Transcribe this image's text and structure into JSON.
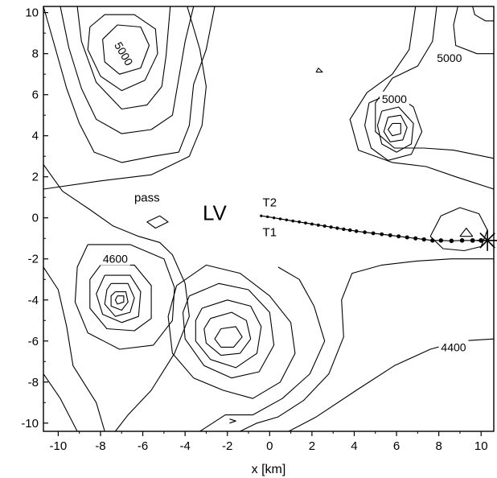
{
  "chart_data": {
    "type": "contour",
    "title": "",
    "xlabel": "x [km]",
    "ylabel": "",
    "xlim": [
      -10.7,
      10.6
    ],
    "ylim": [
      -10.4,
      10.3
    ],
    "x_ticks": [
      "-10",
      "-8",
      "-6",
      "-4",
      "-2",
      "0",
      "2",
      "4",
      "6",
      "8",
      "10"
    ],
    "y_ticks": [
      "10",
      "8",
      "6",
      "4",
      "2",
      "0",
      "-2",
      "-4",
      "-6",
      "-8",
      "-10"
    ],
    "grid": false,
    "contour_labels": [
      {
        "text": "5000",
        "x": -6.9,
        "y": 8.0,
        "rotation": 60
      },
      {
        "text": "5000",
        "x": 8.5,
        "y": 7.8,
        "rotation": 0
      },
      {
        "text": "5000",
        "x": 5.9,
        "y": 5.8,
        "rotation": 0
      },
      {
        "text": "4600",
        "x": -7.3,
        "y": -2.0,
        "rotation": 0
      },
      {
        "text": "4400",
        "x": 8.7,
        "y": -6.3,
        "rotation": 0
      }
    ],
    "annotations": [
      {
        "text": "pass",
        "x": -5.8,
        "y": 0.8,
        "size": "small"
      },
      {
        "text": "LV",
        "x": -2.6,
        "y": -0.1,
        "size": "big"
      },
      {
        "text": "T2",
        "x": 0.0,
        "y": 0.55,
        "size": "small"
      },
      {
        "text": "T1",
        "x": 0.0,
        "y": -0.9,
        "size": "small"
      }
    ],
    "marker": {
      "type": "star",
      "x": 10.3,
      "y": -1.1
    },
    "trajectory": [
      [
        -0.4,
        0.1
      ],
      [
        -0.1,
        0.05
      ],
      [
        0.2,
        0.0
      ],
      [
        0.5,
        -0.05
      ],
      [
        0.8,
        -0.1
      ],
      [
        1.1,
        -0.15
      ],
      [
        1.4,
        -0.2
      ],
      [
        1.7,
        -0.25
      ],
      [
        2.0,
        -0.3
      ],
      [
        2.3,
        -0.35
      ],
      [
        2.6,
        -0.4
      ],
      [
        2.9,
        -0.45
      ],
      [
        3.2,
        -0.5
      ],
      [
        3.5,
        -0.55
      ],
      [
        3.8,
        -0.6
      ],
      [
        4.1,
        -0.65
      ],
      [
        4.5,
        -0.7
      ],
      [
        4.9,
        -0.75
      ],
      [
        5.3,
        -0.8
      ],
      [
        5.7,
        -0.85
      ],
      [
        6.1,
        -0.9
      ],
      [
        6.5,
        -0.95
      ],
      [
        6.9,
        -1.0
      ],
      [
        7.3,
        -1.05
      ],
      [
        7.7,
        -1.1
      ],
      [
        8.1,
        -1.1
      ],
      [
        8.6,
        -1.12
      ],
      [
        9.1,
        -1.1
      ],
      [
        9.6,
        -1.1
      ],
      [
        10.0,
        -1.1
      ]
    ],
    "contours": [
      [
        [
          -10.7,
          10.3
        ],
        [
          -10.2,
          8.5
        ],
        [
          -9.6,
          6.3
        ],
        [
          -9.0,
          4.6
        ],
        [
          -8.3,
          3.2
        ],
        [
          -7.0,
          2.7
        ],
        [
          -5.5,
          3.0
        ],
        [
          -4.3,
          3.2
        ],
        [
          -3.8,
          4.5
        ],
        [
          -3.6,
          6.5
        ],
        [
          -3.0,
          8.2
        ],
        [
          -2.6,
          10.3
        ]
      ],
      [
        [
          -9.9,
          10.3
        ],
        [
          -9.5,
          8.3
        ],
        [
          -8.9,
          6.3
        ],
        [
          -8.2,
          4.8
        ],
        [
          -7.0,
          4.1
        ],
        [
          -5.6,
          4.3
        ],
        [
          -4.6,
          5.0
        ],
        [
          -4.3,
          6.8
        ],
        [
          -4.0,
          8.6
        ],
        [
          -3.6,
          10.3
        ]
      ],
      [
        [
          -9.1,
          10.3
        ],
        [
          -8.9,
          8.6
        ],
        [
          -8.2,
          6.6
        ],
        [
          -7.0,
          5.3
        ],
        [
          -5.8,
          5.5
        ],
        [
          -5.1,
          6.4
        ],
        [
          -4.9,
          7.9
        ],
        [
          -4.7,
          10.3
        ]
      ],
      [
        [
          -8.5,
          9.3
        ],
        [
          -7.8,
          9.9
        ],
        [
          -6.4,
          9.9
        ],
        [
          -5.4,
          9.2
        ],
        [
          -5.3,
          8.0
        ],
        [
          -5.9,
          6.7
        ],
        [
          -7.0,
          6.2
        ],
        [
          -8.0,
          6.9
        ],
        [
          -8.6,
          8.2
        ],
        [
          -8.5,
          9.3
        ]
      ],
      [
        [
          -7.9,
          8.7
        ],
        [
          -7.2,
          9.4
        ],
        [
          -6.1,
          9.3
        ],
        [
          -5.7,
          8.4
        ],
        [
          -6.1,
          7.3
        ],
        [
          -7.1,
          7.0
        ],
        [
          -7.8,
          7.6
        ],
        [
          -7.9,
          8.7
        ]
      ],
      [
        [
          -10.7,
          2.6
        ],
        [
          -9.8,
          1.3
        ],
        [
          -8.5,
          0.4
        ],
        [
          -7.4,
          -0.4
        ],
        [
          -6.2,
          -0.9
        ],
        [
          -5.2,
          -1.2
        ],
        [
          -4.6,
          -1.8
        ],
        [
          -4.0,
          -3.2
        ],
        [
          -3.8,
          -4.8
        ],
        [
          -4.5,
          -6.6
        ],
        [
          -5.6,
          -8.4
        ],
        [
          -6.7,
          -9.6
        ],
        [
          -7.3,
          -10.4
        ]
      ],
      [
        [
          -5.2,
          0.1
        ],
        [
          -4.8,
          -0.2
        ],
        [
          -5.4,
          -0.5
        ],
        [
          -5.8,
          -0.2
        ],
        [
          -5.2,
          0.1
        ]
      ],
      [
        [
          -8.6,
          -1.3
        ],
        [
          -6.6,
          -1.3
        ],
        [
          -5.0,
          -2.0
        ],
        [
          -4.5,
          -3.4
        ],
        [
          -4.6,
          -5.0
        ],
        [
          -5.5,
          -6.2
        ],
        [
          -7.1,
          -6.4
        ],
        [
          -8.6,
          -5.6
        ],
        [
          -9.2,
          -4.1
        ],
        [
          -9.1,
          -2.4
        ],
        [
          -8.6,
          -1.3
        ]
      ],
      [
        [
          -8.0,
          -2.3
        ],
        [
          -6.4,
          -2.3
        ],
        [
          -5.6,
          -3.3
        ],
        [
          -5.6,
          -4.9
        ],
        [
          -6.4,
          -5.5
        ],
        [
          -7.7,
          -5.4
        ],
        [
          -8.5,
          -4.4
        ],
        [
          -8.5,
          -3.0
        ],
        [
          -8.0,
          -2.3
        ]
      ],
      [
        [
          -7.8,
          -2.8
        ],
        [
          -6.6,
          -2.8
        ],
        [
          -6.1,
          -3.6
        ],
        [
          -6.2,
          -4.8
        ],
        [
          -7.0,
          -5.1
        ],
        [
          -7.9,
          -4.7
        ],
        [
          -8.2,
          -3.7
        ],
        [
          -7.8,
          -2.8
        ]
      ],
      [
        [
          -7.5,
          -3.2
        ],
        [
          -6.7,
          -3.2
        ],
        [
          -6.4,
          -3.9
        ],
        [
          -6.6,
          -4.6
        ],
        [
          -7.3,
          -4.8
        ],
        [
          -7.8,
          -4.2
        ],
        [
          -7.7,
          -3.5
        ],
        [
          -7.5,
          -3.2
        ]
      ],
      [
        [
          -7.3,
          -3.6
        ],
        [
          -6.8,
          -3.6
        ],
        [
          -6.7,
          -4.1
        ],
        [
          -7.0,
          -4.5
        ],
        [
          -7.5,
          -4.3
        ],
        [
          -7.5,
          -3.8
        ],
        [
          -7.3,
          -3.6
        ]
      ],
      [
        [
          -7.2,
          -3.8
        ],
        [
          -6.9,
          -3.8
        ],
        [
          -6.9,
          -4.1
        ],
        [
          -7.2,
          -4.2
        ],
        [
          -7.3,
          -4.0
        ],
        [
          -7.2,
          -3.8
        ]
      ],
      [
        [
          -4.4,
          -3.3
        ],
        [
          -3.0,
          -2.3
        ],
        [
          -1.4,
          -2.7
        ],
        [
          0.0,
          -3.8
        ],
        [
          1.0,
          -5.1
        ],
        [
          1.2,
          -6.6
        ],
        [
          0.5,
          -8.0
        ],
        [
          -0.8,
          -8.8
        ],
        [
          -2.2,
          -8.4
        ],
        [
          -3.6,
          -7.8
        ],
        [
          -4.6,
          -6.6
        ],
        [
          -4.8,
          -4.8
        ],
        [
          -4.4,
          -3.3
        ]
      ],
      [
        [
          -3.8,
          -3.8
        ],
        [
          -2.4,
          -3.2
        ],
        [
          -1.0,
          -3.5
        ],
        [
          0.0,
          -4.6
        ],
        [
          0.2,
          -6.2
        ],
        [
          -0.5,
          -7.5
        ],
        [
          -1.8,
          -7.8
        ],
        [
          -3.1,
          -7.2
        ],
        [
          -4.0,
          -5.9
        ],
        [
          -4.1,
          -4.6
        ],
        [
          -3.8,
          -3.8
        ]
      ],
      [
        [
          -3.2,
          -4.4
        ],
        [
          -2.0,
          -4.0
        ],
        [
          -0.9,
          -4.3
        ],
        [
          -0.4,
          -5.3
        ],
        [
          -0.6,
          -6.6
        ],
        [
          -1.6,
          -7.3
        ],
        [
          -2.8,
          -6.9
        ],
        [
          -3.5,
          -6.0
        ],
        [
          -3.5,
          -5.0
        ],
        [
          -3.2,
          -4.4
        ]
      ],
      [
        [
          -2.8,
          -4.9
        ],
        [
          -1.8,
          -4.6
        ],
        [
          -1.1,
          -5.0
        ],
        [
          -0.9,
          -5.9
        ],
        [
          -1.4,
          -6.6
        ],
        [
          -2.3,
          -6.7
        ],
        [
          -3.0,
          -6.1
        ],
        [
          -3.1,
          -5.4
        ],
        [
          -2.8,
          -4.9
        ]
      ],
      [
        [
          -2.3,
          -5.4
        ],
        [
          -1.6,
          -5.3
        ],
        [
          -1.3,
          -5.8
        ],
        [
          -1.7,
          -6.3
        ],
        [
          -2.3,
          -6.3
        ],
        [
          -2.6,
          -5.9
        ],
        [
          -2.3,
          -5.4
        ]
      ],
      [
        [
          -3.9,
          10.3
        ],
        [
          -3.3,
          8.2
        ],
        [
          -3.0,
          6.4
        ],
        [
          -3.2,
          4.5
        ],
        [
          -3.8,
          3.0
        ],
        [
          -5.6,
          2.1
        ],
        [
          -8.0,
          1.8
        ],
        [
          -10.7,
          1.4
        ]
      ],
      [
        [
          -10.7,
          -2.4
        ],
        [
          -10.0,
          -3.5
        ],
        [
          -9.6,
          -5.3
        ],
        [
          -9.3,
          -7.2
        ],
        [
          -8.2,
          -9.0
        ],
        [
          -7.8,
          -10.4
        ]
      ],
      [
        [
          -10.7,
          -7.6
        ],
        [
          -9.9,
          -8.8
        ],
        [
          -9.1,
          -10.4
        ]
      ],
      [
        [
          -3.3,
          -10.4
        ],
        [
          -2.1,
          -9.6
        ],
        [
          -0.8,
          -9.6
        ],
        [
          0.6,
          -8.8
        ],
        [
          1.9,
          -7.6
        ],
        [
          2.6,
          -6.0
        ],
        [
          2.1,
          -4.3
        ],
        [
          1.4,
          -3.0
        ],
        [
          0.4,
          -2.4
        ]
      ],
      [
        [
          -1.4,
          -10.4
        ],
        [
          -0.6,
          -10.0
        ],
        [
          0.4,
          -9.7
        ],
        [
          1.6,
          -8.9
        ],
        [
          2.8,
          -7.6
        ],
        [
          3.5,
          -5.8
        ],
        [
          3.4,
          -4.0
        ],
        [
          3.9,
          -2.7
        ],
        [
          5.3,
          -2.3
        ],
        [
          7.0,
          -2.1
        ],
        [
          8.6,
          -2.0
        ],
        [
          10.6,
          -2.0
        ]
      ],
      [
        [
          0.9,
          -10.4
        ],
        [
          2.2,
          -9.7
        ],
        [
          4.1,
          -8.4
        ],
        [
          5.9,
          -7.2
        ],
        [
          7.6,
          -6.4
        ],
        [
          9.0,
          -6.0
        ],
        [
          10.6,
          -5.9
        ]
      ],
      [
        [
          6.9,
          10.3
        ],
        [
          6.6,
          8.2
        ],
        [
          5.8,
          7.0
        ],
        [
          4.6,
          6.1
        ],
        [
          3.8,
          4.8
        ],
        [
          4.2,
          3.3
        ],
        [
          5.8,
          2.7
        ],
        [
          7.4,
          2.5
        ],
        [
          8.8,
          2.0
        ],
        [
          10.6,
          1.4
        ]
      ],
      [
        [
          7.9,
          10.3
        ],
        [
          7.7,
          8.6
        ],
        [
          7.0,
          7.4
        ],
        [
          5.8,
          6.8
        ],
        [
          5.0,
          5.6
        ],
        [
          5.0,
          4.2
        ],
        [
          5.9,
          3.4
        ],
        [
          7.3,
          3.4
        ],
        [
          8.7,
          3.3
        ],
        [
          10.6,
          2.9
        ]
      ],
      [
        [
          8.9,
          10.3
        ],
        [
          8.7,
          9.4
        ],
        [
          8.8,
          8.4
        ],
        [
          9.8,
          8.0
        ],
        [
          10.6,
          8.0
        ]
      ],
      [
        [
          9.6,
          10.3
        ],
        [
          9.7,
          9.9
        ],
        [
          10.2,
          9.6
        ],
        [
          10.6,
          9.6
        ]
      ],
      [
        [
          4.7,
          5.6
        ],
        [
          5.8,
          6.1
        ],
        [
          6.8,
          5.4
        ],
        [
          7.2,
          4.2
        ],
        [
          6.7,
          3.1
        ],
        [
          5.6,
          2.8
        ],
        [
          4.8,
          3.4
        ],
        [
          4.5,
          4.5
        ],
        [
          4.7,
          5.6
        ]
      ],
      [
        [
          5.3,
          5.2
        ],
        [
          6.1,
          5.4
        ],
        [
          6.8,
          4.6
        ],
        [
          6.7,
          3.6
        ],
        [
          6.0,
          3.2
        ],
        [
          5.3,
          3.6
        ],
        [
          5.1,
          4.5
        ],
        [
          5.3,
          5.2
        ]
      ],
      [
        [
          5.6,
          4.9
        ],
        [
          6.2,
          5.0
        ],
        [
          6.5,
          4.4
        ],
        [
          6.3,
          3.8
        ],
        [
          5.7,
          3.7
        ],
        [
          5.4,
          4.2
        ],
        [
          5.6,
          4.9
        ]
      ],
      [
        [
          5.8,
          4.6
        ],
        [
          6.2,
          4.6
        ],
        [
          6.2,
          4.1
        ],
        [
          5.8,
          4.0
        ],
        [
          5.6,
          4.3
        ],
        [
          5.8,
          4.6
        ]
      ],
      [
        [
          7.6,
          -0.9
        ],
        [
          8.1,
          0.1
        ],
        [
          9.0,
          0.5
        ],
        [
          9.9,
          0.2
        ],
        [
          10.3,
          -0.6
        ],
        [
          10.0,
          -1.4
        ],
        [
          9.2,
          -1.6
        ],
        [
          8.2,
          -1.5
        ],
        [
          7.6,
          -0.9
        ]
      ],
      [
        [
          9.0,
          -0.9
        ],
        [
          9.3,
          -0.5
        ],
        [
          9.6,
          -0.9
        ],
        [
          9.0,
          -0.9
        ]
      ],
      [
        [
          2.3,
          7.3
        ],
        [
          2.5,
          7.1
        ],
        [
          2.2,
          7.1
        ],
        [
          2.3,
          7.3
        ]
      ],
      [
        [
          -1.9,
          -9.8
        ],
        [
          -1.6,
          -9.9
        ],
        [
          -1.9,
          -10.0
        ]
      ]
    ]
  }
}
